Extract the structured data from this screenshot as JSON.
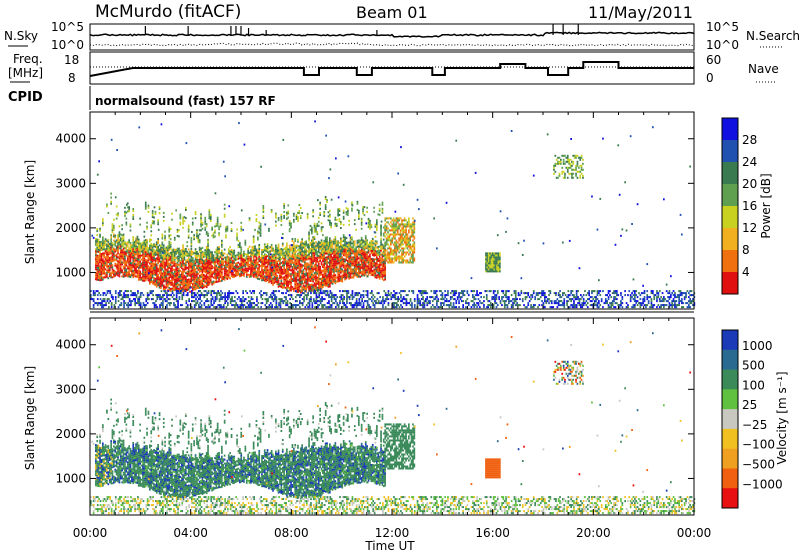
{
  "header": {
    "station": "McMurdo (fitACF)",
    "beam": "Beam 01",
    "date": "11/May/2011"
  },
  "noise_panel": {
    "left_label": "N.Sky",
    "right_label": "N.Search",
    "left_ticks": [
      "10^5",
      "10^0"
    ],
    "right_ticks": [
      "10^5",
      "10^0"
    ]
  },
  "freq_panel": {
    "left_label_line1": "Freq.",
    "left_label_line2": "[MHz]",
    "right_label": "Nave",
    "left_ticks": [
      "18",
      "8"
    ],
    "right_ticks": [
      "60",
      "0"
    ]
  },
  "cpid": {
    "label": "CPID",
    "value": "normalsound (fast) 157 RF"
  },
  "chart_data": [
    {
      "type": "heatmap",
      "name": "power",
      "ylabel": "Slant Range [km]",
      "xlabel": "Time UT",
      "x_ticks": [
        "00:00",
        "04:00",
        "08:00",
        "12:00",
        "16:00",
        "20:00",
        "00:00"
      ],
      "xlim_hours": [
        0,
        24
      ],
      "ylim_km": [
        180,
        4600
      ],
      "y_ticks": [
        1000,
        2000,
        3000,
        4000
      ],
      "colorbar": {
        "label": "Power [dB]",
        "ticks": [
          "4",
          "8",
          "12",
          "16",
          "20",
          "24",
          "28"
        ],
        "colors": [
          "#1010e0",
          "#2050b0",
          "#3a7a50",
          "#5fa050",
          "#c8d020",
          "#f0b020",
          "#f07010",
          "#e01010"
        ]
      }
    },
    {
      "type": "heatmap",
      "name": "velocity",
      "ylabel": "Slant Range [km]",
      "xlabel": "Time UT",
      "x_ticks": [
        "00:00",
        "04:00",
        "08:00",
        "12:00",
        "16:00",
        "20:00",
        "00:00"
      ],
      "xlim_hours": [
        0,
        24
      ],
      "ylim_km": [
        180,
        4600
      ],
      "y_ticks": [
        1000,
        2000,
        3000,
        4000
      ],
      "colorbar": {
        "label": "Velocity [m s⁻¹]",
        "ticks": [
          "1000",
          "500",
          "100",
          "25",
          "−25",
          "−100",
          "−500",
          "−1000"
        ],
        "colors": [
          "#1a3ab8",
          "#2a6a90",
          "#3b8a5a",
          "#60c040",
          "#c8c8c0",
          "#f0c020",
          "#f0a020",
          "#f06010",
          "#e81010"
        ]
      }
    }
  ],
  "x_axis_title": "Time UT"
}
